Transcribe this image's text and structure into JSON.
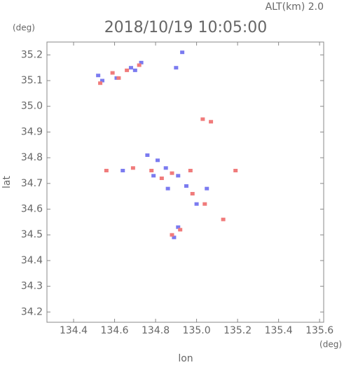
{
  "chart_data": {
    "type": "scatter",
    "title": "2018/10/19 10:05:00",
    "annotation": "ALT(km) 2.0",
    "y_unit": "(deg)",
    "x_unit": "(deg)",
    "xlabel": "lon",
    "ylabel": "lat",
    "xlim": [
      134.27,
      135.62
    ],
    "ylim": [
      34.16,
      35.25
    ],
    "xticks": [
      134.4,
      134.6,
      134.8,
      {
        "value": 135,
        "label": "135.0"
      },
      135.2,
      135.4,
      135.6
    ],
    "yticks": [
      34.2,
      34.3,
      34.4,
      34.5,
      34.6,
      34.7,
      34.8,
      34.9,
      {
        "value": 35,
        "label": "35.0"
      },
      35.1,
      35.2
    ],
    "series": [
      {
        "color": "#7b7bf0",
        "x": [
          134.52,
          134.54,
          134.61,
          134.68,
          134.73,
          134.7,
          134.93,
          134.9,
          134.64,
          134.76,
          134.79,
          134.85,
          134.91,
          134.95,
          135.0,
          135.05,
          134.81,
          134.86,
          134.91,
          134.89
        ],
        "y": [
          35.12,
          35.1,
          35.11,
          35.15,
          35.17,
          35.14,
          35.21,
          35.15,
          34.75,
          34.81,
          34.73,
          34.76,
          34.73,
          34.69,
          34.62,
          34.68,
          34.79,
          34.68,
          34.53,
          34.49
        ]
      },
      {
        "color": "#f07b7b",
        "x": [
          134.53,
          134.59,
          134.66,
          134.72,
          134.62,
          135.03,
          135.07,
          134.56,
          134.69,
          134.78,
          134.83,
          134.88,
          134.97,
          134.98,
          135.04,
          135.19,
          135.13,
          134.88,
          134.92
        ],
        "y": [
          35.09,
          35.13,
          35.14,
          35.16,
          35.11,
          34.95,
          34.94,
          34.75,
          34.76,
          34.75,
          34.72,
          34.74,
          34.75,
          34.66,
          34.62,
          34.75,
          34.56,
          34.5,
          34.52
        ]
      }
    ]
  }
}
